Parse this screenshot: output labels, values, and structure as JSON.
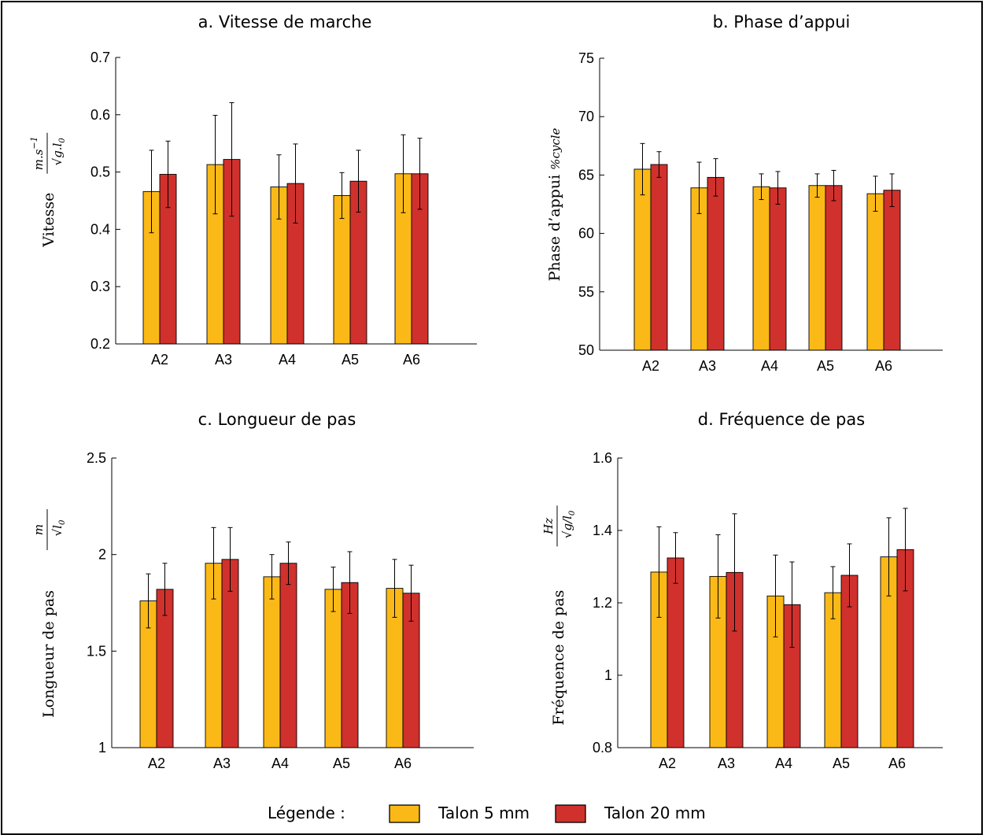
{
  "legend": {
    "title": "Légende :",
    "items": [
      {
        "label": "Talon 5 mm",
        "color": "#fbb917"
      },
      {
        "label": "Talon 20 mm",
        "color": "#d0312d"
      }
    ]
  },
  "chart_data": [
    {
      "type": "bar",
      "title": "a.  Vitesse de marche",
      "ylabel": {
        "main": "Vitesse",
        "num": "m.s",
        "sup": "−1",
        "den_pre": "g.l",
        "den_sub": "0"
      },
      "categories": [
        "A2",
        "A3",
        "A4",
        "A5",
        "A6"
      ],
      "ylim": [
        0.2,
        0.7
      ],
      "yticks": [
        0.2,
        0.3,
        0.4,
        0.5,
        0.6,
        0.7
      ],
      "ytick_labels": [
        "0.2",
        "0.3",
        "0.4",
        "0.5",
        "0.6",
        "0.7"
      ],
      "series": [
        {
          "values": [
            0.466,
            0.513,
            0.474,
            0.459,
            0.497
          ],
          "errors": [
            0.072,
            0.086,
            0.056,
            0.04,
            0.068
          ]
        },
        {
          "values": [
            0.496,
            0.522,
            0.48,
            0.484,
            0.497
          ],
          "errors": [
            0.058,
            0.099,
            0.069,
            0.054,
            0.062
          ]
        }
      ]
    },
    {
      "type": "bar",
      "title": "b.  Phase d’appui",
      "ylabel": {
        "main": "Phase d’appui",
        "unit": "%cycle"
      },
      "categories": [
        "A2",
        "A3",
        "A4",
        "A5",
        "A6"
      ],
      "ylim": [
        50,
        75
      ],
      "yticks": [
        50,
        55,
        60,
        65,
        70,
        75
      ],
      "ytick_labels": [
        "50",
        "55",
        "60",
        "65",
        "70",
        "75"
      ],
      "series": [
        {
          "values": [
            65.5,
            63.9,
            64.0,
            64.1,
            63.4
          ],
          "errors": [
            2.2,
            2.2,
            1.1,
            1.0,
            1.5
          ]
        },
        {
          "values": [
            65.9,
            64.8,
            63.9,
            64.1,
            63.7
          ],
          "errors": [
            1.1,
            1.6,
            1.4,
            1.3,
            1.4
          ]
        }
      ]
    },
    {
      "type": "bar",
      "title": "c.  Longueur de pas",
      "ylabel": {
        "main": "Longueur de pas",
        "num": "m",
        "den_pre": "l",
        "den_sub": "0"
      },
      "categories": [
        "A2",
        "A3",
        "A4",
        "A5",
        "A6"
      ],
      "ylim": [
        1,
        2.5
      ],
      "yticks": [
        1,
        1.5,
        2,
        2.5
      ],
      "ytick_labels": [
        "1",
        "1.5",
        "2",
        "2.5"
      ],
      "series": [
        {
          "values": [
            1.76,
            1.955,
            1.885,
            1.82,
            1.825
          ],
          "errors": [
            0.14,
            0.185,
            0.115,
            0.115,
            0.15
          ]
        },
        {
          "values": [
            1.82,
            1.975,
            1.955,
            1.855,
            1.8
          ],
          "errors": [
            0.135,
            0.165,
            0.11,
            0.16,
            0.145
          ]
        }
      ]
    },
    {
      "type": "bar",
      "title": "d.  Fréquence de pas",
      "ylabel": {
        "main": "Fréquence de pas",
        "num": "Hz",
        "den_pre": "g/l",
        "den_sub": "0"
      },
      "categories": [
        "A2",
        "A3",
        "A4",
        "A5",
        "A6"
      ],
      "ylim": [
        0.8,
        1.6
      ],
      "yticks": [
        0.8,
        1,
        1.2,
        1.4,
        1.6
      ],
      "ytick_labels": [
        "0.8",
        "1",
        "1.2",
        "1.4",
        "1.6"
      ],
      "series": [
        {
          "values": [
            1.285,
            1.273,
            1.219,
            1.228,
            1.327
          ],
          "errors": [
            0.125,
            0.115,
            0.113,
            0.072,
            0.108
          ]
        },
        {
          "values": [
            1.324,
            1.284,
            1.195,
            1.276,
            1.347
          ],
          "errors": [
            0.07,
            0.162,
            0.118,
            0.087,
            0.114
          ]
        }
      ]
    }
  ]
}
